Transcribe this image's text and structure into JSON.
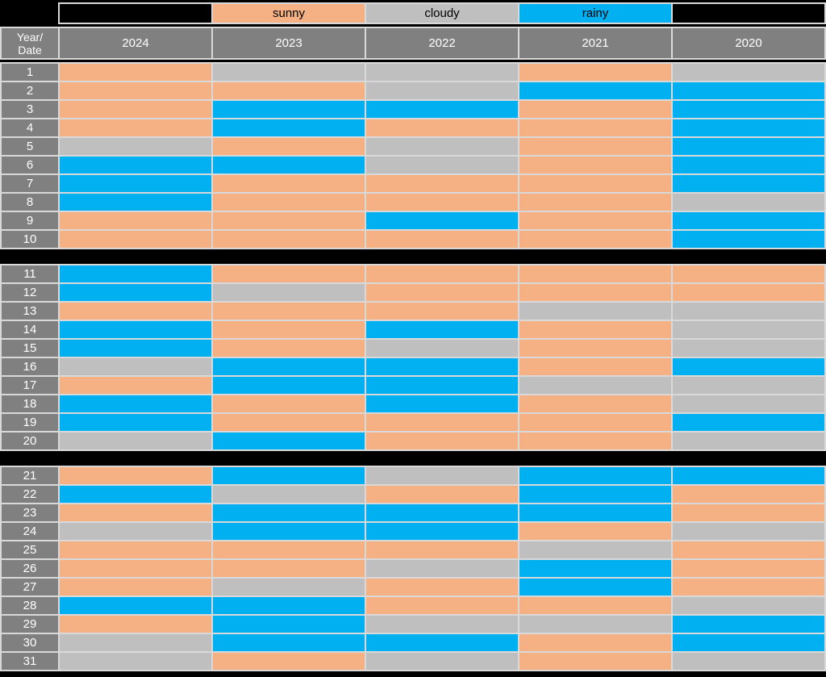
{
  "colors": {
    "background": "#000000",
    "grid_line": "#D9D9D9",
    "header_bg": "#808080",
    "header_text": "#FFFFFF",
    "sunny": "#F5B183",
    "cloudy": "#BFBFBF",
    "rainy": "#00B0F0"
  },
  "legend": {
    "items": [
      {
        "label": "",
        "color": "#000000"
      },
      {
        "label": "sunny",
        "color": "#F5B183"
      },
      {
        "label": "cloudy",
        "color": "#BFBFBF"
      },
      {
        "label": "rainy",
        "color": "#00B0F0"
      },
      {
        "label": "",
        "color": "#000000"
      }
    ]
  },
  "header": {
    "corner_line1": "Year/",
    "corner_line2": "Date",
    "years": [
      "2024",
      "2023",
      "2022",
      "2021",
      "2020"
    ]
  },
  "chart_data": {
    "type": "heatmap",
    "columns": [
      "2024",
      "2023",
      "2022",
      "2021",
      "2020"
    ],
    "row_axis_label": "Year/Date",
    "dates": [
      1,
      2,
      3,
      4,
      5,
      6,
      7,
      8,
      9,
      10,
      11,
      12,
      13,
      14,
      15,
      16,
      17,
      18,
      19,
      20,
      21,
      22,
      23,
      24,
      25,
      26,
      27,
      28,
      29,
      30,
      31
    ],
    "categories": [
      "sunny",
      "cloudy",
      "rainy"
    ],
    "palette": {
      "sunny": "#F5B183",
      "cloudy": "#BFBFBF",
      "rainy": "#00B0F0"
    },
    "sections": [
      [
        1,
        10
      ],
      [
        11,
        20
      ],
      [
        21,
        31
      ]
    ],
    "values": [
      [
        "sunny",
        "cloudy",
        "cloudy",
        "sunny",
        "cloudy"
      ],
      [
        "sunny",
        "sunny",
        "cloudy",
        "rainy",
        "rainy"
      ],
      [
        "sunny",
        "rainy",
        "rainy",
        "sunny",
        "rainy"
      ],
      [
        "sunny",
        "rainy",
        "sunny",
        "sunny",
        "rainy"
      ],
      [
        "cloudy",
        "sunny",
        "cloudy",
        "sunny",
        "rainy"
      ],
      [
        "rainy",
        "rainy",
        "cloudy",
        "sunny",
        "rainy"
      ],
      [
        "rainy",
        "sunny",
        "sunny",
        "sunny",
        "rainy"
      ],
      [
        "rainy",
        "sunny",
        "sunny",
        "sunny",
        "cloudy"
      ],
      [
        "sunny",
        "sunny",
        "rainy",
        "sunny",
        "rainy"
      ],
      [
        "sunny",
        "sunny",
        "sunny",
        "sunny",
        "rainy"
      ],
      [
        "rainy",
        "sunny",
        "sunny",
        "sunny",
        "sunny"
      ],
      [
        "rainy",
        "cloudy",
        "sunny",
        "sunny",
        "sunny"
      ],
      [
        "sunny",
        "sunny",
        "sunny",
        "cloudy",
        "cloudy"
      ],
      [
        "rainy",
        "sunny",
        "rainy",
        "sunny",
        "cloudy"
      ],
      [
        "rainy",
        "sunny",
        "cloudy",
        "sunny",
        "cloudy"
      ],
      [
        "cloudy",
        "rainy",
        "rainy",
        "sunny",
        "rainy"
      ],
      [
        "sunny",
        "rainy",
        "rainy",
        "cloudy",
        "cloudy"
      ],
      [
        "rainy",
        "sunny",
        "rainy",
        "sunny",
        "cloudy"
      ],
      [
        "rainy",
        "sunny",
        "sunny",
        "sunny",
        "rainy"
      ],
      [
        "cloudy",
        "rainy",
        "sunny",
        "sunny",
        "cloudy"
      ],
      [
        "sunny",
        "rainy",
        "cloudy",
        "rainy",
        "rainy"
      ],
      [
        "rainy",
        "cloudy",
        "sunny",
        "rainy",
        "sunny"
      ],
      [
        "sunny",
        "rainy",
        "rainy",
        "rainy",
        "sunny"
      ],
      [
        "cloudy",
        "rainy",
        "rainy",
        "sunny",
        "cloudy"
      ],
      [
        "sunny",
        "sunny",
        "sunny",
        "cloudy",
        "sunny"
      ],
      [
        "sunny",
        "sunny",
        "cloudy",
        "rainy",
        "sunny"
      ],
      [
        "sunny",
        "cloudy",
        "sunny",
        "rainy",
        "sunny"
      ],
      [
        "rainy",
        "rainy",
        "sunny",
        "sunny",
        "cloudy"
      ],
      [
        "sunny",
        "rainy",
        "cloudy",
        "cloudy",
        "rainy"
      ],
      [
        "cloudy",
        "rainy",
        "rainy",
        "sunny",
        "rainy"
      ],
      [
        "cloudy",
        "sunny",
        "cloudy",
        "sunny",
        "cloudy"
      ]
    ]
  }
}
